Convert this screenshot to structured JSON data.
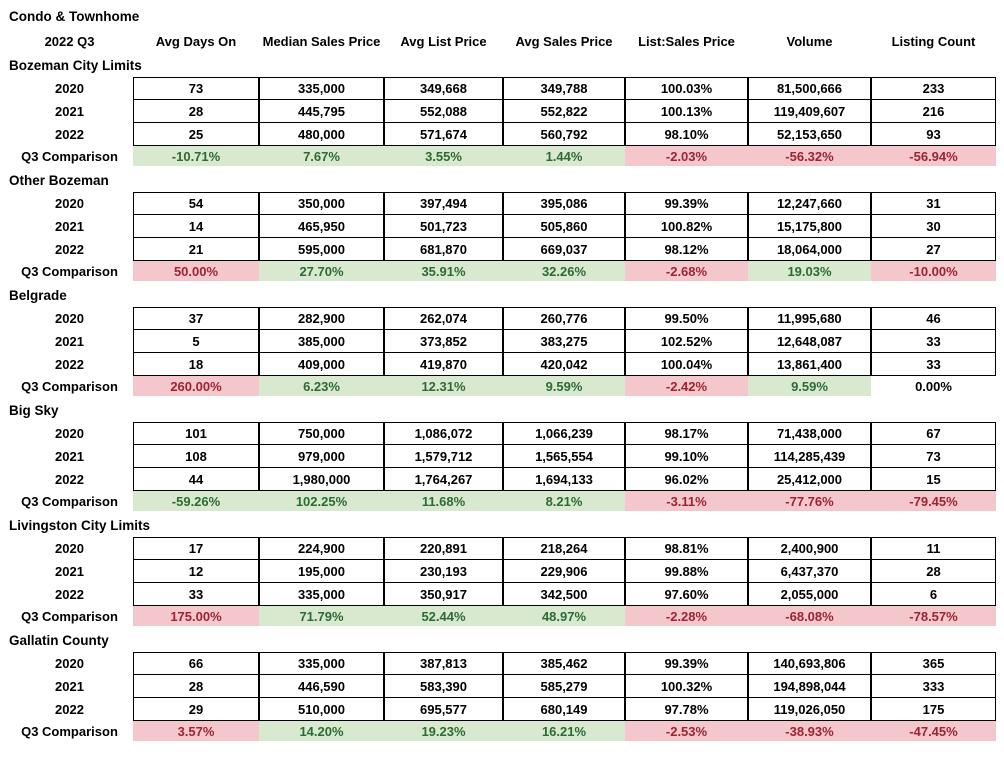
{
  "title": "Condo & Townhome",
  "period": "2022 Q3",
  "comparison_label": "Q3 Comparison",
  "columns": [
    "Avg Days On",
    "Median Sales Price",
    "Avg List Price",
    "Avg Sales Price",
    "List:Sales Price",
    "Volume",
    "Listing Count"
  ],
  "colors": {
    "positive_bg": "#d8e9d0",
    "positive_text": "#2d6a34",
    "negative_bg": "#f4c7cc",
    "negative_text": "#9c2433",
    "border": "#000000"
  },
  "sections": [
    {
      "name": "Bozeman City Limits",
      "rows": [
        {
          "year": "2020",
          "values": [
            "73",
            "335,000",
            "349,668",
            "349,788",
            "100.03%",
            "81,500,666",
            "233"
          ]
        },
        {
          "year": "2021",
          "values": [
            "28",
            "445,795",
            "552,088",
            "552,822",
            "100.13%",
            "119,409,607",
            "216"
          ]
        },
        {
          "year": "2022",
          "values": [
            "25",
            "480,000",
            "571,674",
            "560,792",
            "98.10%",
            "52,153,650",
            "93"
          ]
        }
      ],
      "comparison": [
        {
          "value": "-10.71%",
          "tone": "green"
        },
        {
          "value": "7.67%",
          "tone": "green"
        },
        {
          "value": "3.55%",
          "tone": "green"
        },
        {
          "value": "1.44%",
          "tone": "green"
        },
        {
          "value": "-2.03%",
          "tone": "red"
        },
        {
          "value": "-56.32%",
          "tone": "red"
        },
        {
          "value": "-56.94%",
          "tone": "red"
        }
      ]
    },
    {
      "name": "Other Bozeman",
      "rows": [
        {
          "year": "2020",
          "values": [
            "54",
            "350,000",
            "397,494",
            "395,086",
            "99.39%",
            "12,247,660",
            "31"
          ]
        },
        {
          "year": "2021",
          "values": [
            "14",
            "465,950",
            "501,723",
            "505,860",
            "100.82%",
            "15,175,800",
            "30"
          ]
        },
        {
          "year": "2022",
          "values": [
            "21",
            "595,000",
            "681,870",
            "669,037",
            "98.12%",
            "18,064,000",
            "27"
          ]
        }
      ],
      "comparison": [
        {
          "value": "50.00%",
          "tone": "red"
        },
        {
          "value": "27.70%",
          "tone": "green"
        },
        {
          "value": "35.91%",
          "tone": "green"
        },
        {
          "value": "32.26%",
          "tone": "green"
        },
        {
          "value": "-2.68%",
          "tone": "red"
        },
        {
          "value": "19.03%",
          "tone": "green"
        },
        {
          "value": "-10.00%",
          "tone": "red"
        }
      ]
    },
    {
      "name": "Belgrade",
      "rows": [
        {
          "year": "2020",
          "values": [
            "37",
            "282,900",
            "262,074",
            "260,776",
            "99.50%",
            "11,995,680",
            "46"
          ]
        },
        {
          "year": "2021",
          "values": [
            "5",
            "385,000",
            "373,852",
            "383,275",
            "102.52%",
            "12,648,087",
            "33"
          ]
        },
        {
          "year": "2022",
          "values": [
            "18",
            "409,000",
            "419,870",
            "420,042",
            "100.04%",
            "13,861,400",
            "33"
          ]
        }
      ],
      "comparison": [
        {
          "value": "260.00%",
          "tone": "red"
        },
        {
          "value": "6.23%",
          "tone": "green"
        },
        {
          "value": "12.31%",
          "tone": "green"
        },
        {
          "value": "9.59%",
          "tone": "green"
        },
        {
          "value": "-2.42%",
          "tone": "red"
        },
        {
          "value": "9.59%",
          "tone": "green"
        },
        {
          "value": "0.00%",
          "tone": "none"
        }
      ]
    },
    {
      "name": "Big Sky",
      "rows": [
        {
          "year": "2020",
          "values": [
            "101",
            "750,000",
            "1,086,072",
            "1,066,239",
            "98.17%",
            "71,438,000",
            "67"
          ]
        },
        {
          "year": "2021",
          "values": [
            "108",
            "979,000",
            "1,579,712",
            "1,565,554",
            "99.10%",
            "114,285,439",
            "73"
          ]
        },
        {
          "year": "2022",
          "values": [
            "44",
            "1,980,000",
            "1,764,267",
            "1,694,133",
            "96.02%",
            "25,412,000",
            "15"
          ]
        }
      ],
      "comparison": [
        {
          "value": "-59.26%",
          "tone": "green"
        },
        {
          "value": "102.25%",
          "tone": "green"
        },
        {
          "value": "11.68%",
          "tone": "green"
        },
        {
          "value": "8.21%",
          "tone": "green"
        },
        {
          "value": "-3.11%",
          "tone": "red"
        },
        {
          "value": "-77.76%",
          "tone": "red"
        },
        {
          "value": "-79.45%",
          "tone": "red"
        }
      ]
    },
    {
      "name": "Livingston City Limits",
      "rows": [
        {
          "year": "2020",
          "values": [
            "17",
            "224,900",
            "220,891",
            "218,264",
            "98.81%",
            "2,400,900",
            "11"
          ]
        },
        {
          "year": "2021",
          "values": [
            "12",
            "195,000",
            "230,193",
            "229,906",
            "99.88%",
            "6,437,370",
            "28"
          ]
        },
        {
          "year": "2022",
          "values": [
            "33",
            "335,000",
            "350,917",
            "342,500",
            "97.60%",
            "2,055,000",
            "6"
          ]
        }
      ],
      "comparison": [
        {
          "value": "175.00%",
          "tone": "red"
        },
        {
          "value": "71.79%",
          "tone": "green"
        },
        {
          "value": "52.44%",
          "tone": "green"
        },
        {
          "value": "48.97%",
          "tone": "green"
        },
        {
          "value": "-2.28%",
          "tone": "red"
        },
        {
          "value": "-68.08%",
          "tone": "red"
        },
        {
          "value": "-78.57%",
          "tone": "red"
        }
      ]
    },
    {
      "name": "Gallatin County",
      "rows": [
        {
          "year": "2020",
          "values": [
            "66",
            "335,000",
            "387,813",
            "385,462",
            "99.39%",
            "140,693,806",
            "365"
          ]
        },
        {
          "year": "2021",
          "values": [
            "28",
            "446,590",
            "583,390",
            "585,279",
            "100.32%",
            "194,898,044",
            "333"
          ]
        },
        {
          "year": "2022",
          "values": [
            "29",
            "510,000",
            "695,577",
            "680,149",
            "97.78%",
            "119,026,050",
            "175"
          ]
        }
      ],
      "comparison": [
        {
          "value": "3.57%",
          "tone": "red"
        },
        {
          "value": "14.20%",
          "tone": "green"
        },
        {
          "value": "19.23%",
          "tone": "green"
        },
        {
          "value": "16.21%",
          "tone": "green"
        },
        {
          "value": "-2.53%",
          "tone": "red"
        },
        {
          "value": "-38.93%",
          "tone": "red"
        },
        {
          "value": "-47.45%",
          "tone": "red"
        }
      ]
    }
  ]
}
